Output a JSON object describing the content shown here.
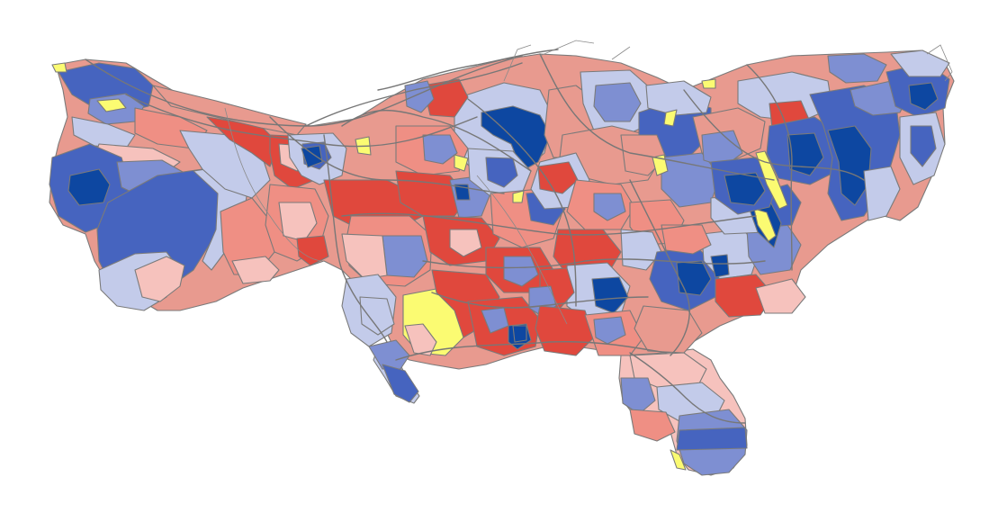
{
  "map": {
    "kind": "county-level election cartogram (population-distorted)",
    "colors": {
      "dark_blue": "#0d47a1",
      "blue": "#4664bf",
      "mid_blue": "#7e8fd2",
      "light_blue": "#c3cbea",
      "light_red": "#f6c2bd",
      "mid_red": "#ef8f84",
      "red": "#e0483d",
      "yellow": "#fbfb72",
      "border": "#777777",
      "background": "#ffffff"
    }
  }
}
